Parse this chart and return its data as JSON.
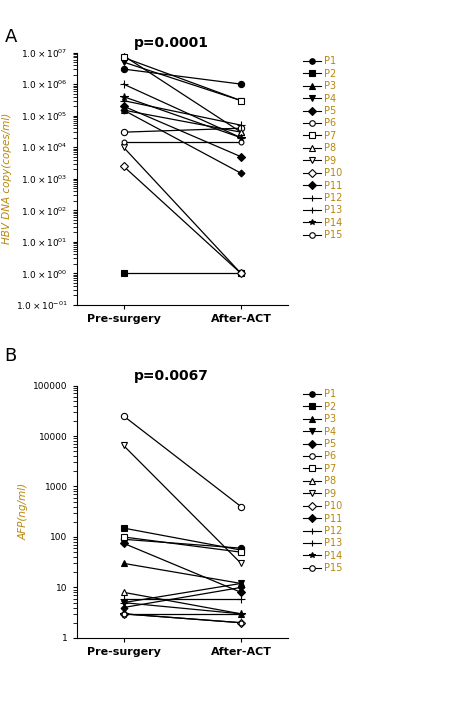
{
  "panel_A": {
    "title": "p=0.0001",
    "ylabel": "HBV DNA copy(copes/ml)",
    "xlabel_pre": "Pre-surgery",
    "xlabel_post": "After-ACT",
    "patients": [
      {
        "name": "P1",
        "pre": 3000000.0,
        "post": 1000000.0
      },
      {
        "name": "P2",
        "pre": 1.0,
        "post": 1.0
      },
      {
        "name": "P3",
        "pre": 8000000.0,
        "post": 30000.0
      },
      {
        "name": "P4",
        "pre": 5000000.0,
        "post": 300000.0
      },
      {
        "name": "P5",
        "pre": 200000.0,
        "post": 5000.0
      },
      {
        "name": "P6",
        "pre": 30000.0,
        "post": 40000.0
      },
      {
        "name": "P7",
        "pre": 7000000.0,
        "post": 300000.0
      },
      {
        "name": "P8",
        "pre": 150000.0,
        "post": 30000.0
      },
      {
        "name": "P9",
        "pre": 10000.0,
        "post": 1.0
      },
      {
        "name": "P10",
        "pre": 2500.0,
        "post": 1.0
      },
      {
        "name": "P11",
        "pre": 150000.0,
        "post": 1500.0
      },
      {
        "name": "P12",
        "pre": 1000000.0,
        "post": 20000.0
      },
      {
        "name": "P13",
        "pre": 300000.0,
        "post": 50000.0
      },
      {
        "name": "P14",
        "pre": 400000.0,
        "post": 20000.0
      },
      {
        "name": "P15",
        "pre": 15000.0,
        "post": 15000.0
      }
    ]
  },
  "panel_B": {
    "title": "p=0.0067",
    "ylabel": "AFP(ng/ml)",
    "xlabel_pre": "Pre-surgery",
    "xlabel_post": "After-ACT",
    "patients": [
      {
        "name": "P1",
        "pre": 90,
        "post": 60
      },
      {
        "name": "P2",
        "pre": 150,
        "post": 55
      },
      {
        "name": "P3",
        "pre": 30,
        "post": 12
      },
      {
        "name": "P4",
        "pre": 5,
        "post": 12
      },
      {
        "name": "P5",
        "pre": 75,
        "post": 8
      },
      {
        "name": "P6",
        "pre": 25000,
        "post": 400
      },
      {
        "name": "P7",
        "pre": 100,
        "post": 50
      },
      {
        "name": "P8",
        "pre": 8,
        "post": 3
      },
      {
        "name": "P9",
        "pre": 6500,
        "post": 30
      },
      {
        "name": "P10",
        "pre": 3,
        "post": 2
      },
      {
        "name": "P11",
        "pre": 4,
        "post": 10
      },
      {
        "name": "P12",
        "pre": 5,
        "post": 3
      },
      {
        "name": "P13",
        "pre": 6,
        "post": 6
      },
      {
        "name": "P14",
        "pre": 3,
        "post": 3
      },
      {
        "name": "P15",
        "pre": 3,
        "post": 2
      }
    ]
  },
  "color": "black",
  "linewidth": 0.9,
  "markersize": 4.5,
  "legend_names": [
    "P1",
    "P2",
    "P3",
    "P4",
    "P5",
    "P6",
    "P7",
    "P8",
    "P9",
    "P10",
    "P11",
    "P12",
    "P13",
    "P14",
    "P15"
  ],
  "label_color": "#b8860b"
}
